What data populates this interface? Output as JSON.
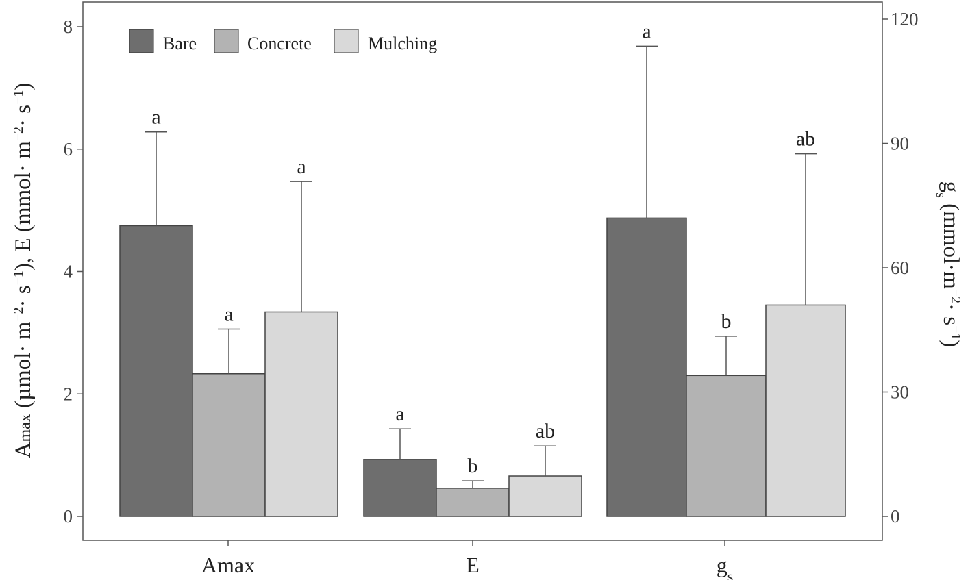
{
  "chart_data": {
    "type": "bar",
    "categories": [
      "Amax",
      "E",
      "gs"
    ],
    "category_labels": [
      {
        "main": "Amax",
        "sub": ""
      },
      {
        "main": "E",
        "sub": ""
      },
      {
        "main": "g",
        "sub": "s"
      }
    ],
    "series": [
      {
        "name": "Bare",
        "color": "#6e6e6e",
        "values": [
          4.75,
          0.93,
          72.0
        ],
        "errors": [
          1.53,
          0.5,
          41.5
        ],
        "letters": [
          "a",
          "a",
          "a"
        ]
      },
      {
        "name": "Concrete",
        "color": "#b3b3b3",
        "values": [
          2.33,
          0.46,
          34.0
        ],
        "errors": [
          0.73,
          0.12,
          9.5
        ],
        "letters": [
          "a",
          "b",
          "b"
        ]
      },
      {
        "name": "Mulching",
        "color": "#d9d9d9",
        "values": [
          3.34,
          0.66,
          51.0
        ],
        "errors": [
          2.13,
          0.49,
          36.5
        ],
        "letters": [
          "a",
          "ab",
          "ab"
        ]
      }
    ],
    "axis_assignment": [
      "left",
      "left",
      "right"
    ],
    "y_left": {
      "ylim": [
        0,
        8
      ],
      "ticks": [
        0,
        2,
        4,
        6,
        8
      ],
      "label": {
        "a": "A",
        "b": "max",
        "c": "  (µmol· m",
        "d": "−2",
        "e": "· s",
        "f": "−1",
        "g": "), E (mmol· m",
        "h": "−2",
        "i": "· s",
        "j": "−1",
        "k": ")"
      }
    },
    "y_right": {
      "ylim": [
        0,
        120
      ],
      "ticks": [
        0,
        30,
        60,
        90,
        120
      ],
      "label": {
        "a": "g",
        "b": "s",
        "c": " (mmol·m",
        "d": "−2",
        "e": "· s",
        "f": "−1",
        "g": ")"
      }
    },
    "legend_position": "top-left",
    "grid": false
  }
}
